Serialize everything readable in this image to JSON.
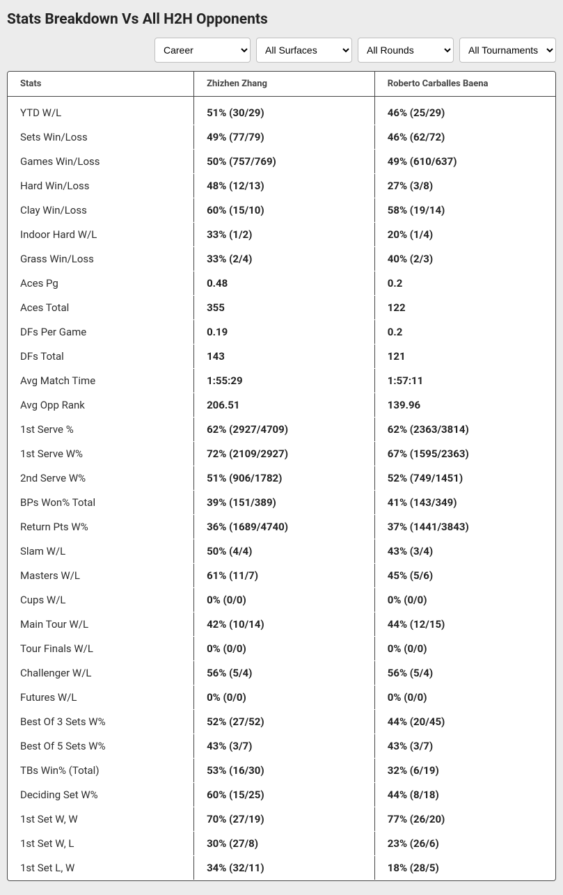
{
  "title": "Stats Breakdown Vs All H2H Opponents",
  "filters": {
    "period": {
      "selected": "Career"
    },
    "surface": {
      "selected": "All Surfaces"
    },
    "round": {
      "selected": "All Rounds"
    },
    "tournament": {
      "selected": "All Tournaments"
    }
  },
  "columns": {
    "stats": "Stats",
    "player1": "Zhizhen Zhang",
    "player2": "Roberto Carballes Baena"
  },
  "rows": [
    {
      "label": "YTD W/L",
      "p1": "51% (30/29)",
      "p2": "46% (25/29)"
    },
    {
      "label": "Sets Win/Loss",
      "p1": "49% (77/79)",
      "p2": "46% (62/72)"
    },
    {
      "label": "Games Win/Loss",
      "p1": "50% (757/769)",
      "p2": "49% (610/637)"
    },
    {
      "label": "Hard Win/Loss",
      "p1": "48% (12/13)",
      "p2": "27% (3/8)"
    },
    {
      "label": "Clay Win/Loss",
      "p1": "60% (15/10)",
      "p2": "58% (19/14)"
    },
    {
      "label": "Indoor Hard W/L",
      "p1": "33% (1/2)",
      "p2": "20% (1/4)"
    },
    {
      "label": "Grass Win/Loss",
      "p1": "33% (2/4)",
      "p2": "40% (2/3)"
    },
    {
      "label": "Aces Pg",
      "p1": "0.48",
      "p2": "0.2"
    },
    {
      "label": "Aces Total",
      "p1": "355",
      "p2": "122"
    },
    {
      "label": "DFs Per Game",
      "p1": "0.19",
      "p2": "0.2"
    },
    {
      "label": "DFs Total",
      "p1": "143",
      "p2": "121"
    },
    {
      "label": "Avg Match Time",
      "p1": "1:55:29",
      "p2": "1:57:11"
    },
    {
      "label": "Avg Opp Rank",
      "p1": "206.51",
      "p2": "139.96"
    },
    {
      "label": "1st Serve %",
      "p1": "62% (2927/4709)",
      "p2": "62% (2363/3814)"
    },
    {
      "label": "1st Serve W%",
      "p1": "72% (2109/2927)",
      "p2": "67% (1595/2363)"
    },
    {
      "label": "2nd Serve W%",
      "p1": "51% (906/1782)",
      "p2": "52% (749/1451)"
    },
    {
      "label": "BPs Won% Total",
      "p1": "39% (151/389)",
      "p2": "41% (143/349)"
    },
    {
      "label": "Return Pts W%",
      "p1": "36% (1689/4740)",
      "p2": "37% (1441/3843)"
    },
    {
      "label": "Slam W/L",
      "p1": "50% (4/4)",
      "p2": "43% (3/4)"
    },
    {
      "label": "Masters W/L",
      "p1": "61% (11/7)",
      "p2": "45% (5/6)"
    },
    {
      "label": "Cups W/L",
      "p1": "0% (0/0)",
      "p2": "0% (0/0)"
    },
    {
      "label": "Main Tour W/L",
      "p1": "42% (10/14)",
      "p2": "44% (12/15)"
    },
    {
      "label": "Tour Finals W/L",
      "p1": "0% (0/0)",
      "p2": "0% (0/0)"
    },
    {
      "label": "Challenger W/L",
      "p1": "56% (5/4)",
      "p2": "56% (5/4)"
    },
    {
      "label": "Futures W/L",
      "p1": "0% (0/0)",
      "p2": "0% (0/0)"
    },
    {
      "label": "Best Of 3 Sets W%",
      "p1": "52% (27/52)",
      "p2": "44% (20/45)"
    },
    {
      "label": "Best Of 5 Sets W%",
      "p1": "43% (3/7)",
      "p2": "43% (3/7)"
    },
    {
      "label": "TBs Win% (Total)",
      "p1": "53% (16/30)",
      "p2": "32% (6/19)"
    },
    {
      "label": "Deciding Set W%",
      "p1": "60% (15/25)",
      "p2": "44% (8/18)"
    },
    {
      "label": "1st Set W, W",
      "p1": "70% (27/19)",
      "p2": "77% (26/20)"
    },
    {
      "label": "1st Set W, L",
      "p1": "30% (27/8)",
      "p2": "23% (26/6)"
    },
    {
      "label": "1st Set L, W",
      "p1": "34% (32/11)",
      "p2": "18% (28/5)"
    }
  ],
  "colors": {
    "page_bg": "#ececec",
    "card_bg": "#ffffff",
    "border": "#444444",
    "text": "#2b2b2b"
  }
}
